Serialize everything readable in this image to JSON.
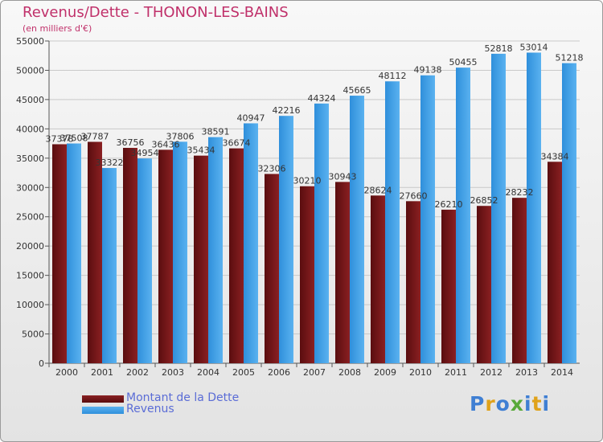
{
  "title": "Revenus/Dette - THONON-LES-BAINS",
  "subtitle": "(en milliers d'€)",
  "legend": {
    "debt_label": "Montant de la Dette",
    "revenue_label": "Revenus"
  },
  "colors": {
    "debt": "#6e1416",
    "revenue": "#3d9fe6",
    "text": "#333333"
  },
  "logo": {
    "text": "Proxiti",
    "letter_colors": [
      "#3f7fd3",
      "#e0a21a",
      "#3f7fd3",
      "#58a93a",
      "#3f7fd3",
      "#e0a21a",
      "#3f7fd3"
    ]
  },
  "chart_data": {
    "type": "bar",
    "title": "Revenus/Dette - THONON-LES-BAINS",
    "ylabel": "(en milliers d'€)",
    "xlabel": "",
    "ylim": [
      0,
      55000
    ],
    "yticks": [
      0,
      5000,
      10000,
      15000,
      20000,
      25000,
      30000,
      35000,
      40000,
      45000,
      50000,
      55000
    ],
    "grid": true,
    "legend_position": "bottom-left",
    "categories": [
      "2000",
      "2001",
      "2002",
      "2003",
      "2004",
      "2005",
      "2006",
      "2007",
      "2008",
      "2009",
      "2010",
      "2011",
      "2012",
      "2013",
      "2014"
    ],
    "series": [
      {
        "name": "Montant de la Dette",
        "values": [
          37378,
          37787,
          36756,
          36436,
          35434,
          36674,
          32306,
          30210,
          30943,
          28624,
          27660,
          26210,
          26852,
          28232,
          34384
        ],
        "labels": [
          "37378",
          "37787",
          "36756",
          "36436",
          "35434",
          "36674",
          "32306",
          "30210",
          "30943",
          "28624",
          "27660",
          "26210",
          "26852",
          "28232",
          "34384"
        ]
      },
      {
        "name": "Revenus",
        "values": [
          37508,
          33322,
          34954,
          37806,
          38591,
          40947,
          42216,
          44324,
          45665,
          48112,
          49138,
          50455,
          52818,
          53014,
          51218
        ],
        "labels": [
          "37508",
          "33322",
          "34954",
          "37806",
          "38591",
          "40947",
          "42216",
          "44324",
          "45665",
          "48112",
          "49138",
          "50455",
          "52818",
          "53014",
          "51218"
        ]
      }
    ]
  }
}
